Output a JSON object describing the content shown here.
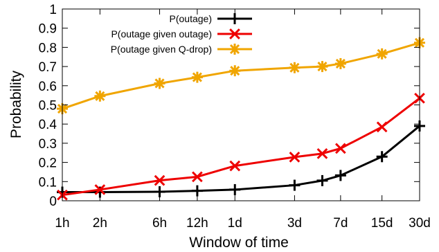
{
  "chart_data": {
    "type": "line",
    "xlabel": "Window of time",
    "ylabel": "Probability",
    "ylim": [
      0,
      1
    ],
    "yticks": [
      "0",
      "0.1",
      "0.2",
      "0.3",
      "0.4",
      "0.5",
      "0.6",
      "0.7",
      "0.8",
      "0.9",
      "1"
    ],
    "x_scale": "log",
    "x_unit": "hours",
    "x_ticks": [
      {
        "label": "1h",
        "hours": 1
      },
      {
        "label": "2h",
        "hours": 2
      },
      {
        "label": "6h",
        "hours": 6
      },
      {
        "label": "12h",
        "hours": 12
      },
      {
        "label": "1d",
        "hours": 24
      },
      {
        "label": "3d",
        "hours": 72
      },
      {
        "label": "7d",
        "hours": 168
      },
      {
        "label": "15d",
        "hours": 360
      },
      {
        "label": "30d",
        "hours": 720
      }
    ],
    "x": [
      1,
      2,
      6,
      12,
      24,
      72,
      120,
      168,
      360,
      720
    ],
    "grid": false,
    "legend_position": "top-right",
    "series": [
      {
        "name": "P(outage)",
        "color": "#000000",
        "marker": "plus",
        "values": [
          0.045,
          0.045,
          0.047,
          0.052,
          0.058,
          0.081,
          0.105,
          0.132,
          0.23,
          0.39
        ]
      },
      {
        "name": "P(outage given outage)",
        "color": "#ee0000",
        "marker": "cross",
        "values": [
          0.03,
          0.058,
          0.106,
          0.125,
          0.182,
          0.228,
          0.246,
          0.273,
          0.385,
          0.535
        ]
      },
      {
        "name": "P(outage given Q-drop)",
        "color": "#f0a500",
        "marker": "star",
        "values": [
          0.48,
          0.546,
          0.612,
          0.644,
          0.678,
          0.694,
          0.7,
          0.715,
          0.766,
          0.824
        ]
      }
    ]
  }
}
